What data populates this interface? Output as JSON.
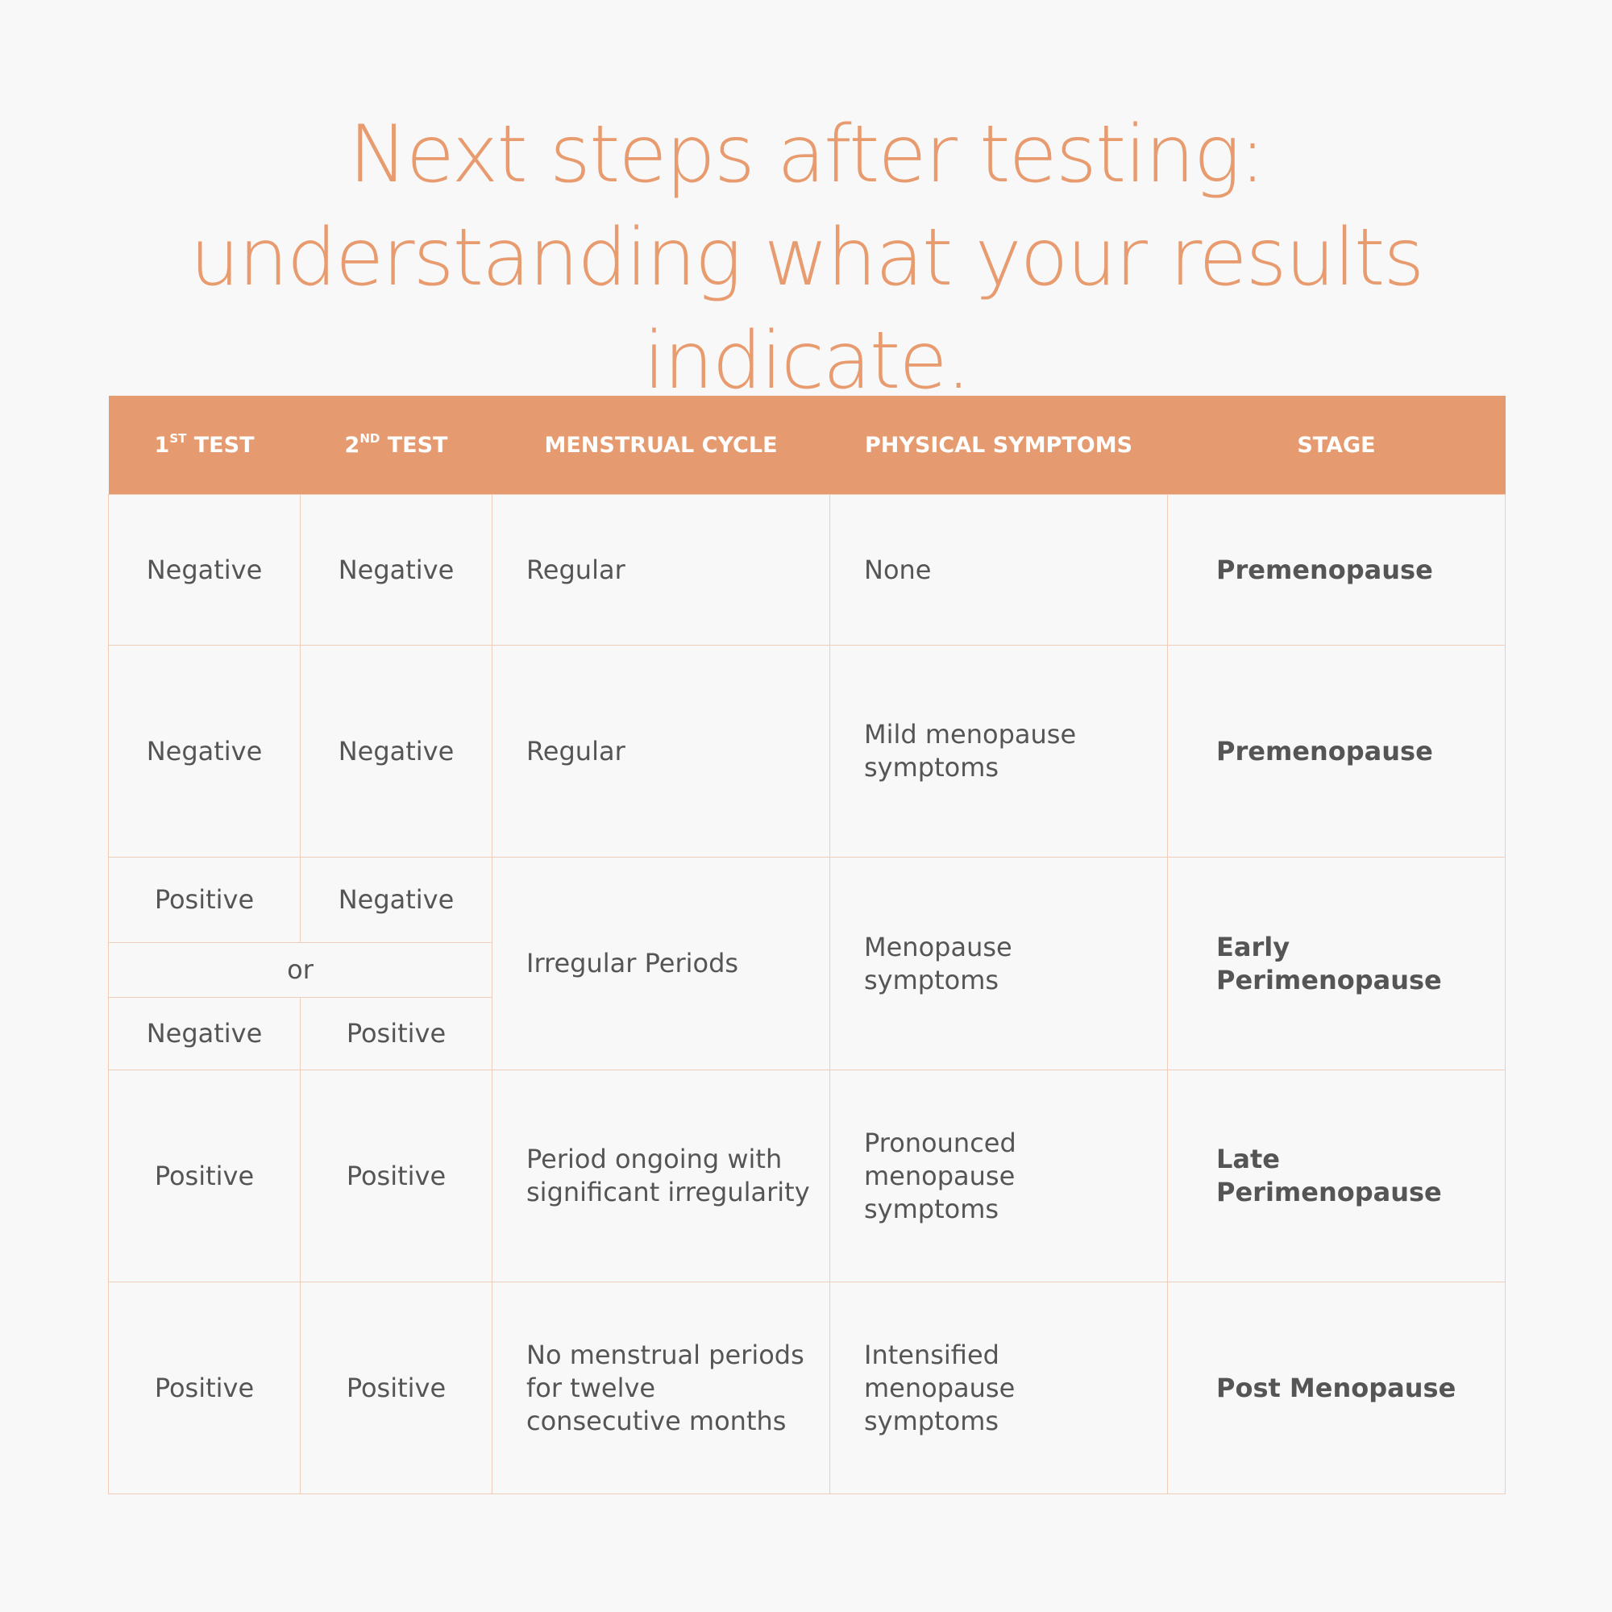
{
  "title": "Next steps after testing: understanding what your results indicate.",
  "table": {
    "headers": {
      "test1": {
        "num": "1",
        "sup": "ST",
        "word": " TEST"
      },
      "test2": {
        "num": "2",
        "sup": "ND",
        "word": " TEST"
      },
      "cycle": "MENSTRUAL CYCLE",
      "symptoms": "PHYSICAL SYMPTOMS",
      "stage": "STAGE"
    },
    "rows": [
      {
        "test1": "Negative",
        "test2": "Negative",
        "cycle": "Regular",
        "symptoms": "None",
        "stage": "Premenopause"
      },
      {
        "test1": "Negative",
        "test2": "Negative",
        "cycle": "Regular",
        "symptoms": "Mild menopause symptoms",
        "stage": "Premenopause"
      },
      {
        "test1_a": "Positive",
        "test2_a": "Negative",
        "or": "or",
        "test1_b": "Negative",
        "test2_b": "Positive",
        "cycle": "Irregular Periods",
        "symptoms": "Menopause symptoms",
        "stage": "Early Perimenopause"
      },
      {
        "test1": "Positive",
        "test2": "Positive",
        "cycle": "Period ongoing with significant irregularity",
        "symptoms": "Pronounced menopause symptoms",
        "stage": "Late Perimenopause"
      },
      {
        "test1": "Positive",
        "test2": "Positive",
        "cycle": "No menstrual periods for twelve consecutive months",
        "symptoms": "Intensified menopause symptoms",
        "stage": "Post Menopause"
      }
    ]
  },
  "colors": {
    "accent": "#e69a6f",
    "text": "#555555",
    "background": "#f8f8f8",
    "border": "#f0cdb8"
  }
}
